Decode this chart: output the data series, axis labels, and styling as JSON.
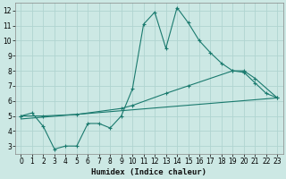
{
  "xlabel": "Humidex (Indice chaleur)",
  "bg_color": "#cce8e4",
  "grid_color": "#b0d4d0",
  "line_color": "#1a7a6e",
  "xlim": [
    -0.5,
    23.5
  ],
  "ylim": [
    2.5,
    12.5
  ],
  "xticks": [
    0,
    1,
    2,
    3,
    4,
    5,
    6,
    7,
    8,
    9,
    10,
    11,
    12,
    13,
    14,
    15,
    16,
    17,
    18,
    19,
    20,
    21,
    22,
    23
  ],
  "yticks": [
    3,
    4,
    5,
    6,
    7,
    8,
    9,
    10,
    11,
    12
  ],
  "line1_x": [
    0,
    1,
    2,
    3,
    4,
    5,
    6,
    7,
    8,
    9,
    10,
    11,
    12,
    13,
    14,
    15,
    16,
    17,
    18,
    19,
    20,
    21,
    22,
    23
  ],
  "line1_y": [
    5.0,
    5.2,
    4.3,
    2.8,
    3.0,
    3.0,
    4.5,
    4.5,
    4.2,
    5.0,
    6.8,
    11.1,
    11.9,
    9.5,
    12.2,
    11.2,
    10.0,
    9.2,
    8.5,
    8.0,
    7.9,
    7.2,
    6.5,
    6.2
  ],
  "line2_x": [
    0,
    2,
    5,
    9,
    10,
    13,
    15,
    19,
    20,
    21,
    23
  ],
  "line2_y": [
    5.0,
    5.0,
    5.1,
    5.5,
    5.7,
    6.5,
    7.0,
    8.0,
    8.0,
    7.5,
    6.2
  ],
  "line3_x": [
    0,
    23
  ],
  "line3_y": [
    4.8,
    6.2
  ]
}
